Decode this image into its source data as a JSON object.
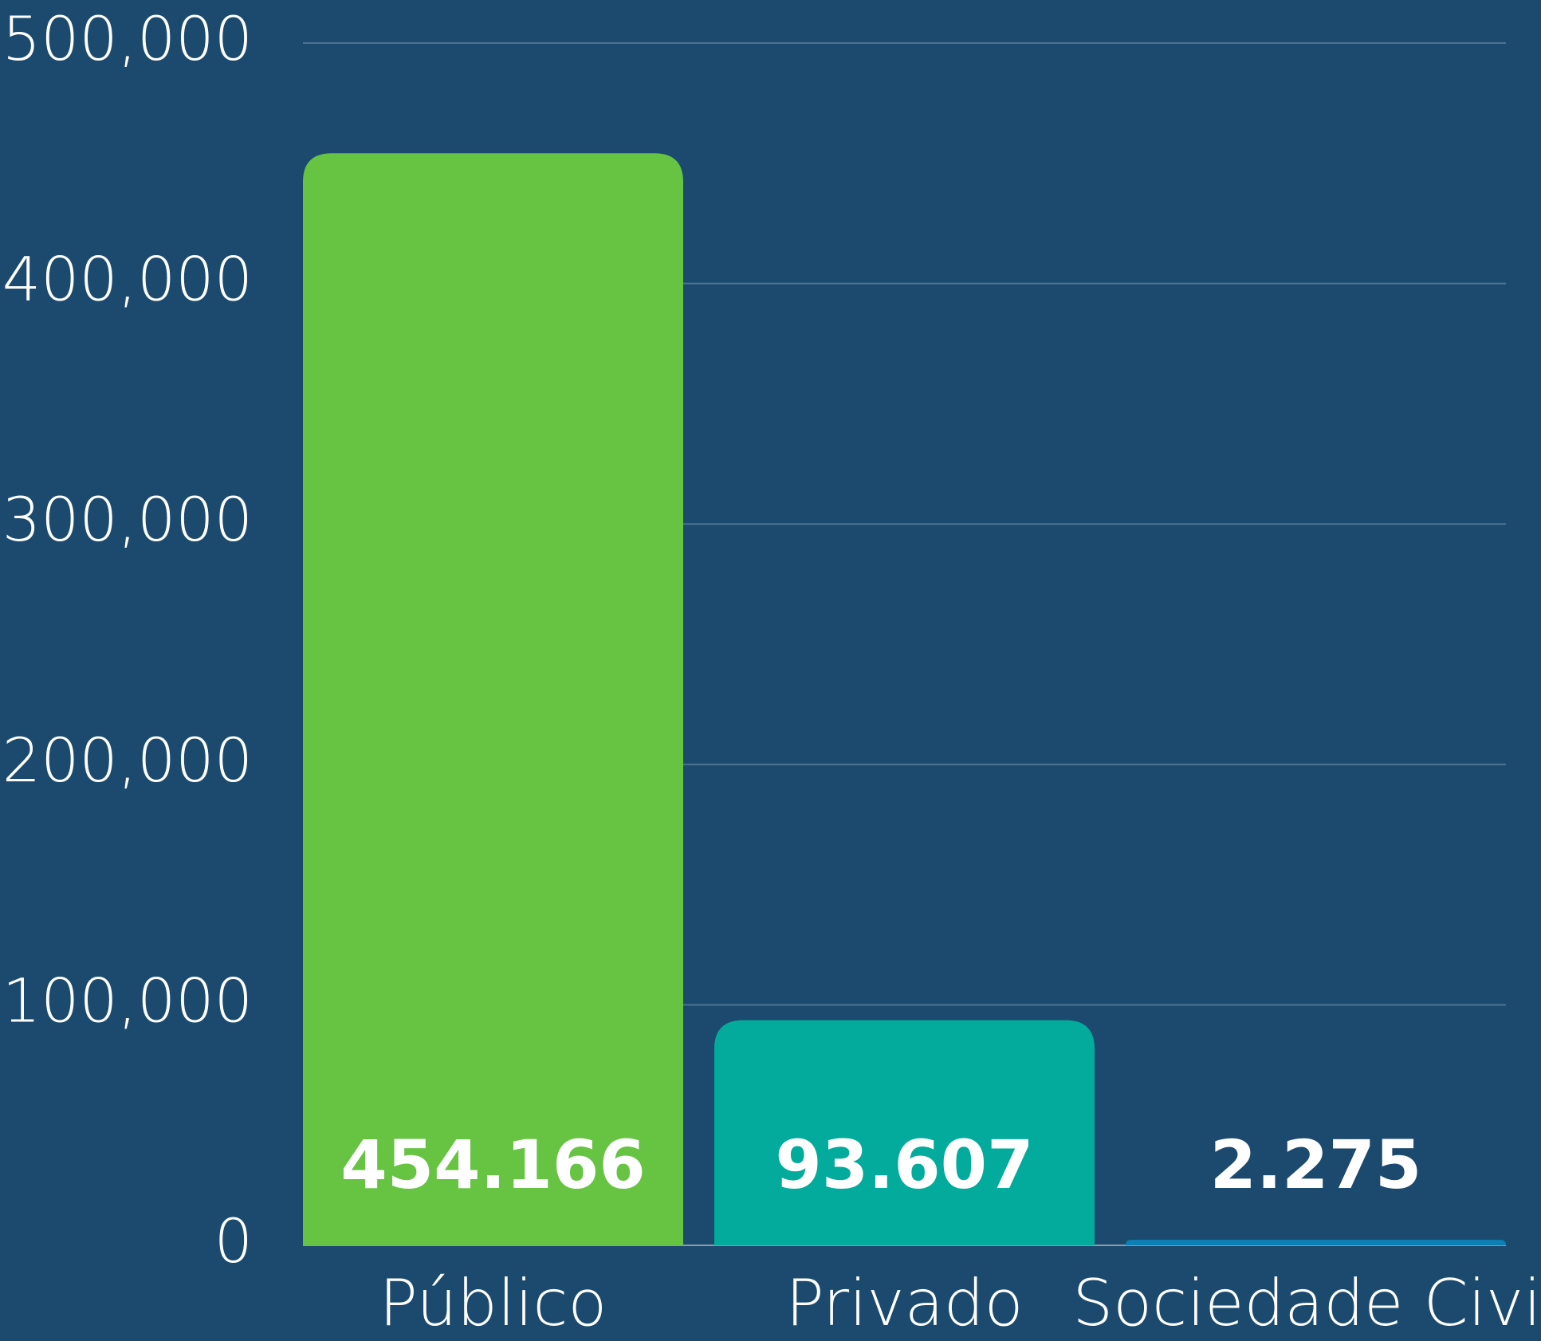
{
  "chart_data": {
    "type": "bar",
    "categories": [
      "Público",
      "Privado",
      "Sociedade Civil"
    ],
    "values": [
      454166,
      93607,
      2275
    ],
    "value_labels": [
      "454.166",
      "93.607",
      "2.275"
    ],
    "colors": [
      "#67c443",
      "#02ab9b",
      "#0b80b5"
    ],
    "ylim": [
      0,
      500000
    ],
    "yticks": [
      0,
      {
        "value": 100000,
        "label": "100,000"
      },
      {
        "value": 200000,
        "label": "200,000"
      },
      {
        "value": 300000,
        "label": "300,000"
      },
      {
        "value": 400000,
        "label": "400,000"
      },
      {
        "value": 500000,
        "label": "500,000"
      }
    ],
    "grid": true
  }
}
